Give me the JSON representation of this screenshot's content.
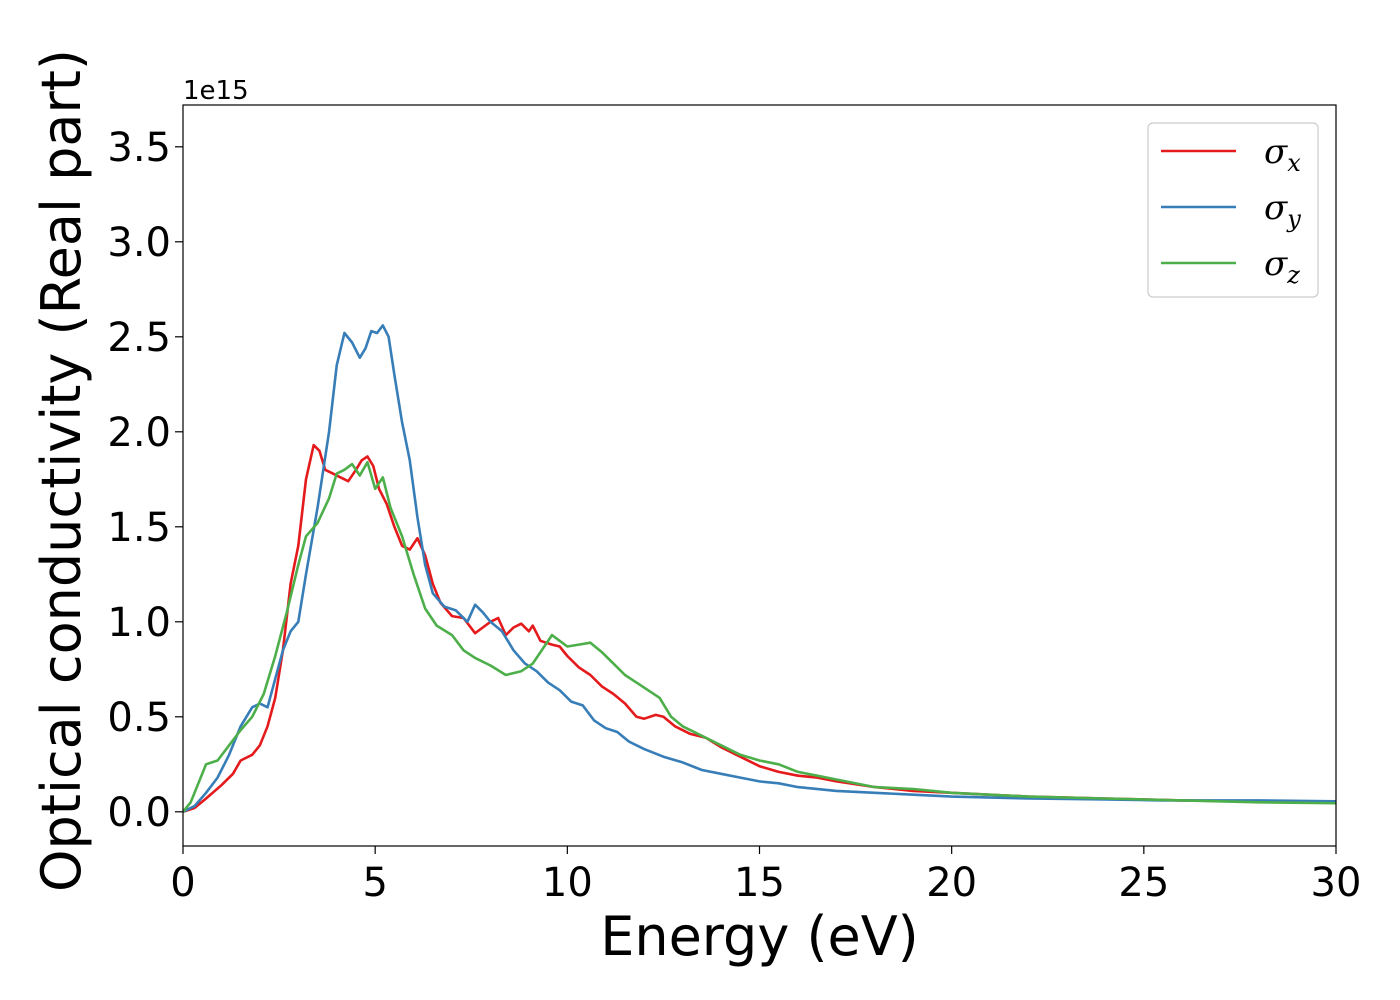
{
  "chart_data": {
    "type": "line",
    "xlabel": "Energy (eV)",
    "ylabel": "Optical conductivity (Real part)",
    "y_offset_label": "1e15",
    "xlim": [
      0,
      30
    ],
    "ylim": [
      -0.18,
      3.72
    ],
    "x_ticks": [
      0,
      5,
      10,
      15,
      20,
      25,
      30
    ],
    "x_tick_labels": [
      "0",
      "5",
      "10",
      "15",
      "20",
      "25",
      "30"
    ],
    "y_ticks": [
      0.0,
      0.5,
      1.0,
      1.5,
      2.0,
      2.5,
      3.0,
      3.5
    ],
    "y_tick_labels": [
      "0.0",
      "0.5",
      "1.0",
      "1.5",
      "2.0",
      "2.5",
      "3.0",
      "3.5"
    ],
    "grid": false,
    "legend_position": "top-right",
    "series": [
      {
        "name": "σx",
        "symbol": "σ",
        "subscript": "x",
        "color": "#e41a1c",
        "points": [
          [
            0,
            0
          ],
          [
            0.3,
            0.02
          ],
          [
            0.6,
            0.07
          ],
          [
            1.0,
            0.14
          ],
          [
            1.3,
            0.2
          ],
          [
            1.5,
            0.27
          ],
          [
            1.8,
            0.3
          ],
          [
            2.0,
            0.35
          ],
          [
            2.2,
            0.45
          ],
          [
            2.4,
            0.6
          ],
          [
            2.6,
            0.85
          ],
          [
            2.8,
            1.2
          ],
          [
            3.0,
            1.4
          ],
          [
            3.2,
            1.75
          ],
          [
            3.4,
            1.93
          ],
          [
            3.55,
            1.9
          ],
          [
            3.7,
            1.8
          ],
          [
            3.9,
            1.78
          ],
          [
            4.1,
            1.76
          ],
          [
            4.3,
            1.74
          ],
          [
            4.5,
            1.8
          ],
          [
            4.65,
            1.85
          ],
          [
            4.8,
            1.87
          ],
          [
            4.95,
            1.82
          ],
          [
            5.1,
            1.7
          ],
          [
            5.3,
            1.62
          ],
          [
            5.5,
            1.5
          ],
          [
            5.7,
            1.4
          ],
          [
            5.9,
            1.38
          ],
          [
            6.1,
            1.44
          ],
          [
            6.3,
            1.35
          ],
          [
            6.5,
            1.2
          ],
          [
            6.7,
            1.1
          ],
          [
            7.0,
            1.03
          ],
          [
            7.3,
            1.02
          ],
          [
            7.6,
            0.94
          ],
          [
            7.8,
            0.97
          ],
          [
            8.0,
            1.0
          ],
          [
            8.2,
            1.02
          ],
          [
            8.4,
            0.93
          ],
          [
            8.6,
            0.97
          ],
          [
            8.8,
            0.99
          ],
          [
            9.0,
            0.95
          ],
          [
            9.1,
            0.98
          ],
          [
            9.3,
            0.9
          ],
          [
            9.6,
            0.88
          ],
          [
            9.8,
            0.87
          ],
          [
            10.0,
            0.82
          ],
          [
            10.3,
            0.76
          ],
          [
            10.6,
            0.72
          ],
          [
            10.9,
            0.66
          ],
          [
            11.2,
            0.62
          ],
          [
            11.5,
            0.57
          ],
          [
            11.8,
            0.5
          ],
          [
            12.0,
            0.49
          ],
          [
            12.3,
            0.51
          ],
          [
            12.5,
            0.5
          ],
          [
            12.8,
            0.45
          ],
          [
            13.2,
            0.41
          ],
          [
            13.6,
            0.39
          ],
          [
            14.0,
            0.34
          ],
          [
            14.5,
            0.29
          ],
          [
            15.0,
            0.24
          ],
          [
            15.5,
            0.21
          ],
          [
            16.0,
            0.19
          ],
          [
            16.5,
            0.18
          ],
          [
            17.0,
            0.16
          ],
          [
            18.0,
            0.13
          ],
          [
            19.0,
            0.11
          ],
          [
            20.0,
            0.1
          ],
          [
            22.0,
            0.08
          ],
          [
            24.0,
            0.07
          ],
          [
            26.0,
            0.06
          ],
          [
            28.0,
            0.055
          ],
          [
            30.0,
            0.05
          ]
        ]
      },
      {
        "name": "σy",
        "symbol": "σ",
        "subscript": "y",
        "color": "#377eb8",
        "points": [
          [
            0,
            0
          ],
          [
            0.3,
            0.03
          ],
          [
            0.6,
            0.1
          ],
          [
            0.9,
            0.18
          ],
          [
            1.2,
            0.3
          ],
          [
            1.5,
            0.45
          ],
          [
            1.8,
            0.55
          ],
          [
            2.0,
            0.57
          ],
          [
            2.2,
            0.55
          ],
          [
            2.4,
            0.7
          ],
          [
            2.6,
            0.85
          ],
          [
            2.8,
            0.95
          ],
          [
            3.0,
            1.0
          ],
          [
            3.2,
            1.25
          ],
          [
            3.5,
            1.6
          ],
          [
            3.8,
            2.0
          ],
          [
            4.0,
            2.35
          ],
          [
            4.2,
            2.52
          ],
          [
            4.4,
            2.47
          ],
          [
            4.6,
            2.39
          ],
          [
            4.75,
            2.44
          ],
          [
            4.9,
            2.53
          ],
          [
            5.05,
            2.52
          ],
          [
            5.2,
            2.56
          ],
          [
            5.35,
            2.5
          ],
          [
            5.5,
            2.3
          ],
          [
            5.7,
            2.05
          ],
          [
            5.9,
            1.85
          ],
          [
            6.1,
            1.55
          ],
          [
            6.3,
            1.3
          ],
          [
            6.5,
            1.15
          ],
          [
            6.8,
            1.08
          ],
          [
            7.1,
            1.06
          ],
          [
            7.4,
            1.0
          ],
          [
            7.6,
            1.09
          ],
          [
            7.8,
            1.05
          ],
          [
            8.0,
            1.0
          ],
          [
            8.3,
            0.95
          ],
          [
            8.6,
            0.85
          ],
          [
            8.9,
            0.78
          ],
          [
            9.2,
            0.74
          ],
          [
            9.5,
            0.68
          ],
          [
            9.8,
            0.64
          ],
          [
            10.1,
            0.58
          ],
          [
            10.4,
            0.56
          ],
          [
            10.7,
            0.48
          ],
          [
            11.0,
            0.44
          ],
          [
            11.3,
            0.42
          ],
          [
            11.6,
            0.37
          ],
          [
            12.0,
            0.33
          ],
          [
            12.5,
            0.29
          ],
          [
            13.0,
            0.26
          ],
          [
            13.5,
            0.22
          ],
          [
            14.0,
            0.2
          ],
          [
            14.5,
            0.18
          ],
          [
            15.0,
            0.16
          ],
          [
            15.5,
            0.15
          ],
          [
            16.0,
            0.13
          ],
          [
            17.0,
            0.11
          ],
          [
            18.0,
            0.1
          ],
          [
            19.0,
            0.09
          ],
          [
            20.0,
            0.08
          ],
          [
            22.0,
            0.07
          ],
          [
            24.0,
            0.065
          ],
          [
            25.5,
            0.06
          ],
          [
            26.0,
            0.06
          ],
          [
            28.0,
            0.06
          ],
          [
            30.0,
            0.055
          ]
        ]
      },
      {
        "name": "σz",
        "symbol": "σ",
        "subscript": "z",
        "color": "#4daf4a",
        "points": [
          [
            0,
            0
          ],
          [
            0.2,
            0.05
          ],
          [
            0.4,
            0.15
          ],
          [
            0.6,
            0.25
          ],
          [
            0.9,
            0.27
          ],
          [
            1.2,
            0.35
          ],
          [
            1.5,
            0.43
          ],
          [
            1.8,
            0.5
          ],
          [
            2.1,
            0.62
          ],
          [
            2.4,
            0.82
          ],
          [
            2.7,
            1.05
          ],
          [
            3.0,
            1.3
          ],
          [
            3.2,
            1.45
          ],
          [
            3.5,
            1.52
          ],
          [
            3.8,
            1.65
          ],
          [
            4.0,
            1.78
          ],
          [
            4.2,
            1.8
          ],
          [
            4.4,
            1.83
          ],
          [
            4.6,
            1.77
          ],
          [
            4.8,
            1.84
          ],
          [
            5.0,
            1.7
          ],
          [
            5.2,
            1.76
          ],
          [
            5.4,
            1.6
          ],
          [
            5.7,
            1.45
          ],
          [
            6.0,
            1.25
          ],
          [
            6.3,
            1.07
          ],
          [
            6.6,
            0.98
          ],
          [
            7.0,
            0.93
          ],
          [
            7.3,
            0.85
          ],
          [
            7.6,
            0.81
          ],
          [
            8.0,
            0.77
          ],
          [
            8.4,
            0.72
          ],
          [
            8.8,
            0.74
          ],
          [
            9.1,
            0.78
          ],
          [
            9.4,
            0.87
          ],
          [
            9.6,
            0.93
          ],
          [
            9.8,
            0.9
          ],
          [
            10.0,
            0.87
          ],
          [
            10.3,
            0.88
          ],
          [
            10.6,
            0.89
          ],
          [
            10.9,
            0.84
          ],
          [
            11.2,
            0.78
          ],
          [
            11.5,
            0.72
          ],
          [
            11.8,
            0.68
          ],
          [
            12.1,
            0.64
          ],
          [
            12.4,
            0.6
          ],
          [
            12.7,
            0.5
          ],
          [
            13.0,
            0.45
          ],
          [
            13.5,
            0.4
          ],
          [
            14.0,
            0.35
          ],
          [
            14.5,
            0.3
          ],
          [
            15.0,
            0.27
          ],
          [
            15.5,
            0.25
          ],
          [
            16.0,
            0.21
          ],
          [
            16.5,
            0.19
          ],
          [
            17.0,
            0.17
          ],
          [
            18.0,
            0.13
          ],
          [
            19.0,
            0.12
          ],
          [
            20.0,
            0.1
          ],
          [
            22.0,
            0.08
          ],
          [
            24.0,
            0.07
          ],
          [
            26.0,
            0.06
          ],
          [
            28.0,
            0.05
          ],
          [
            30.0,
            0.045
          ]
        ]
      }
    ]
  }
}
